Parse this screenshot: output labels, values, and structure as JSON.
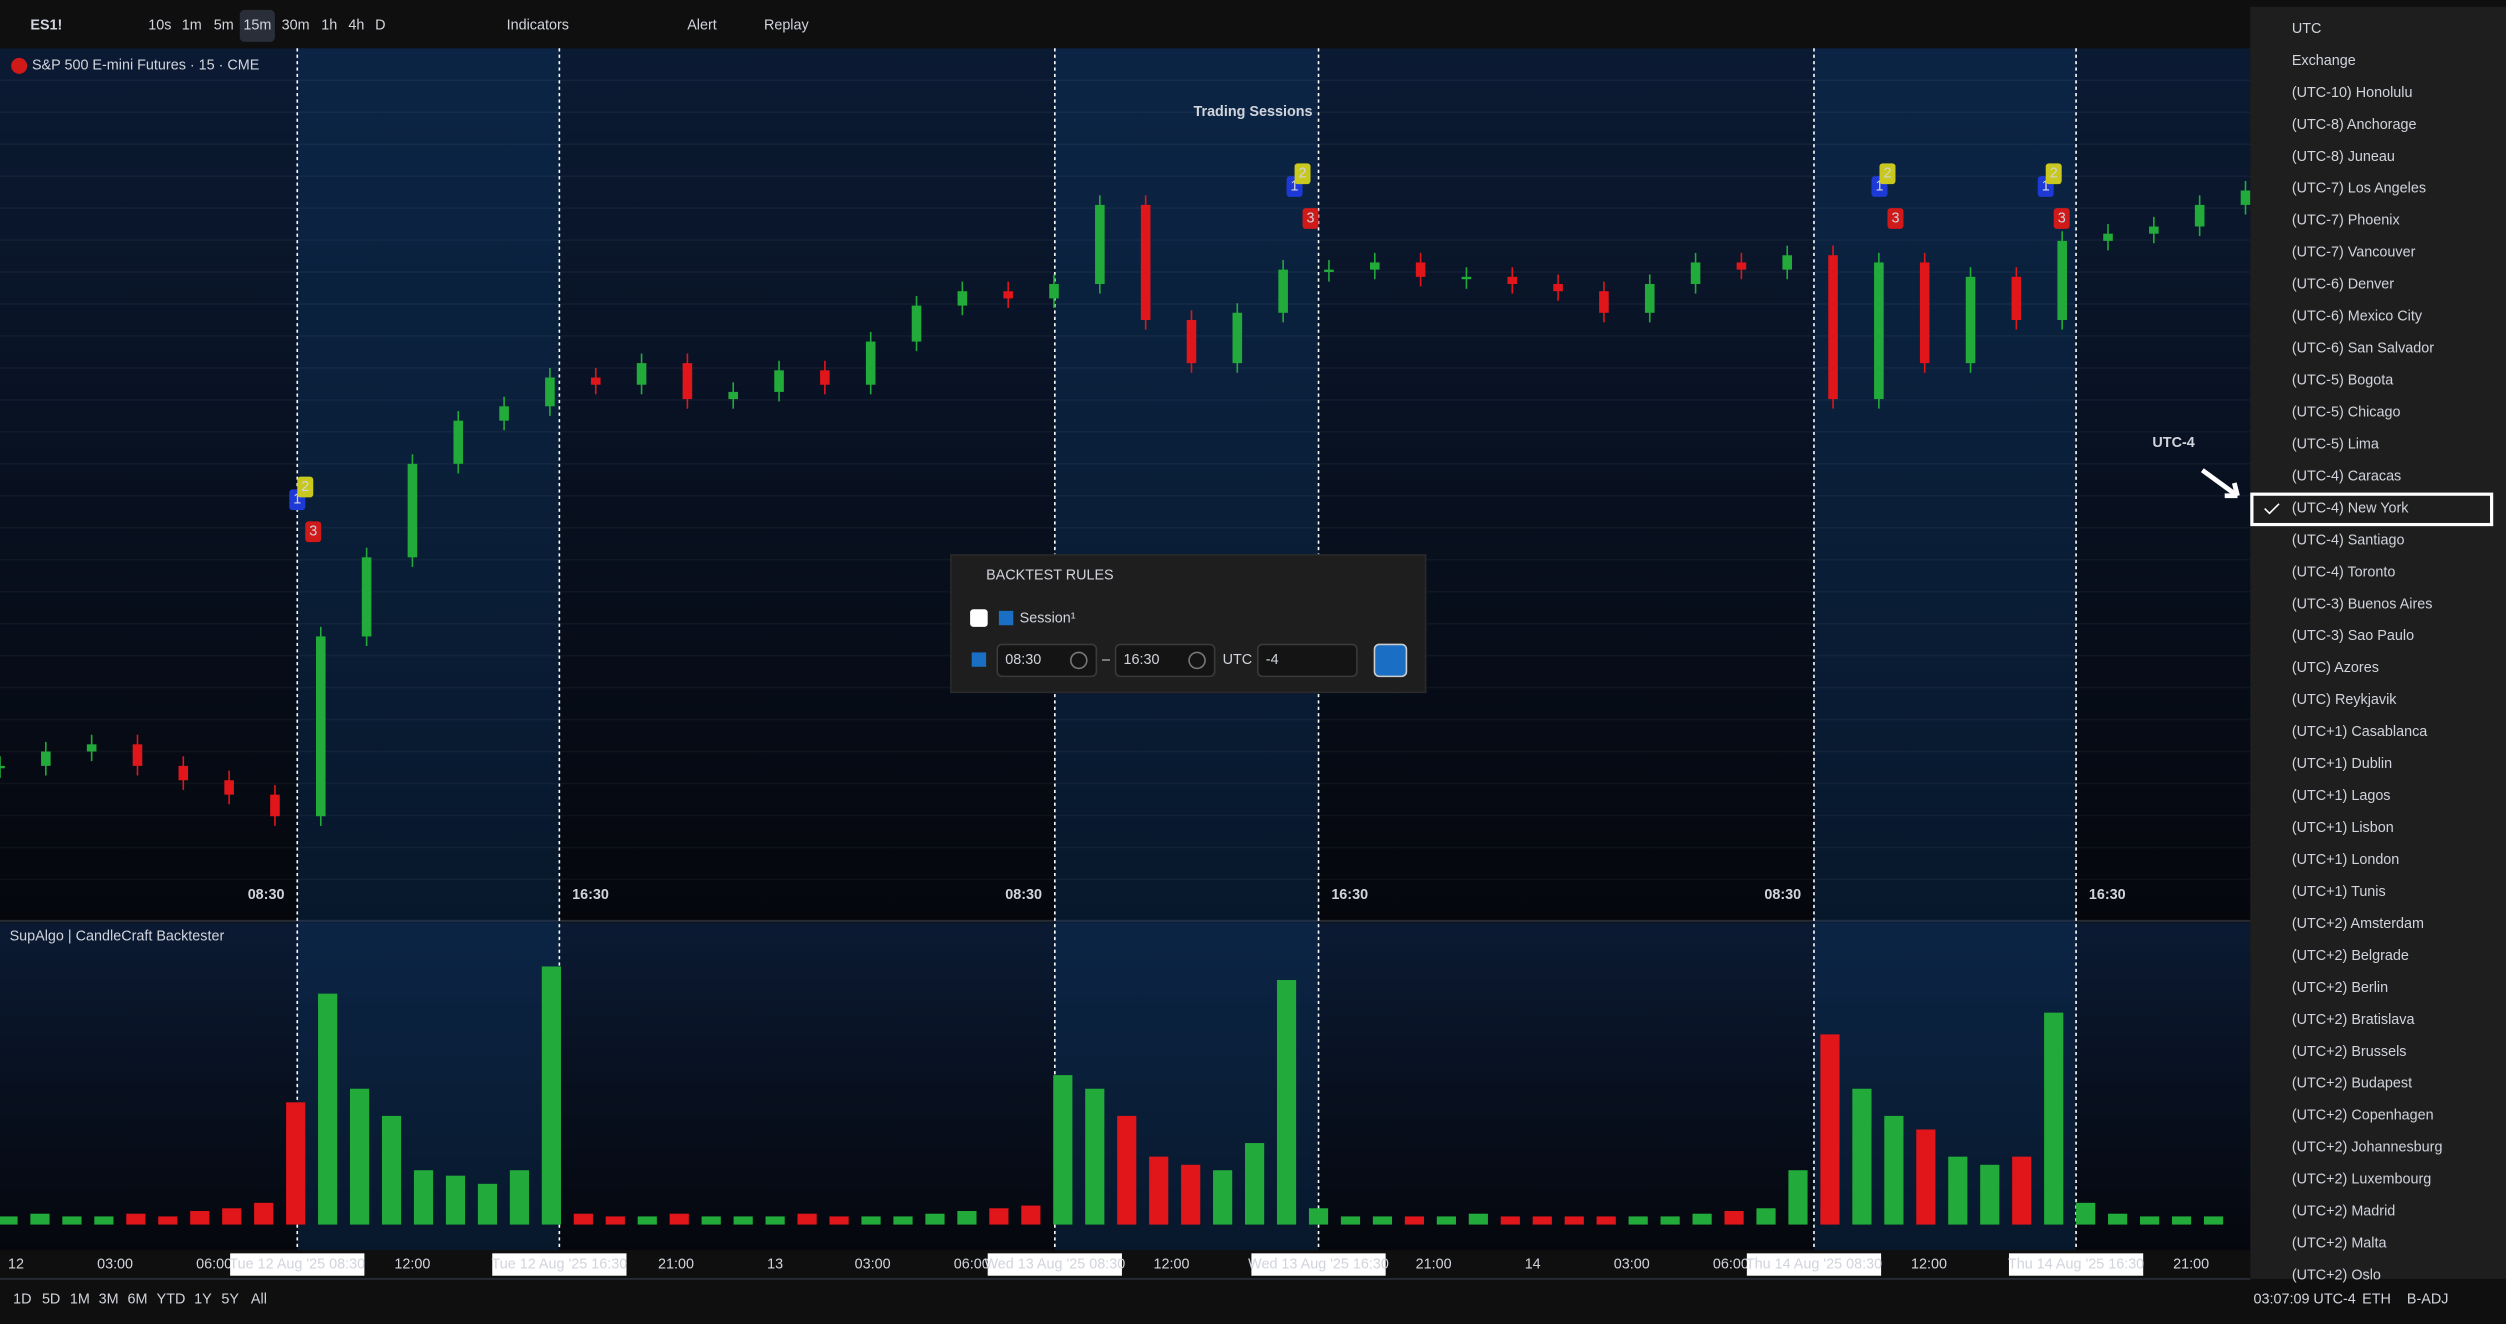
{
  "toolbar": {
    "symbol": "ES1!",
    "intervals": [
      "10s",
      "1m",
      "5m",
      "15m",
      "30m",
      "1h",
      "4h",
      "D"
    ],
    "active_interval": 3,
    "indicators": "Indicators",
    "alert": "Alert",
    "replay": "Replay"
  },
  "chart_data": {
    "type": "candlestick",
    "title": "Trading Sessions",
    "legend": "S&P 500 E-mini Futures · 15 · CME",
    "values": [
      18,
      20,
      21,
      18,
      16,
      14,
      11,
      36,
      47,
      60,
      66,
      68,
      72,
      71,
      74,
      69,
      70,
      73,
      71,
      77,
      82,
      84,
      83,
      85,
      96,
      80,
      74,
      81,
      87,
      87,
      88,
      86,
      86,
      85,
      84,
      81,
      85,
      88,
      87,
      89,
      69,
      88,
      74,
      86,
      80,
      91,
      92,
      93,
      96,
      98
    ],
    "ylim": [
      0,
      100
    ],
    "up_color": "#22ab3a",
    "down_color": "#e0161b",
    "session_labels": [
      "08:30",
      "16:30",
      "08:30",
      "16:30",
      "08:30",
      "16:30"
    ],
    "annotation": "UTC-4",
    "x_labels": [
      "12",
      "03:00",
      "06:00",
      "Tue 12 Aug '25   08:30",
      "12:00",
      "Tue 12 Aug '25   16:30",
      "21:00",
      "13",
      "03:00",
      "06:00",
      "Wed 13 Aug '25   08:30",
      "12:00",
      "Wed 13 Aug '25   16:30",
      "21:00",
      "14",
      "03:00",
      "06:00",
      "Thu 14 Aug '25   08:30",
      "12:00",
      "Thu 14 Aug '25   16:30",
      "21:00"
    ],
    "signals": [
      [
        "1",
        "2",
        "3"
      ],
      [
        "1",
        "2",
        "3"
      ],
      [
        "1",
        "2",
        "3"
      ],
      [
        "1",
        "2",
        "3"
      ]
    ]
  },
  "indicator": {
    "title": "SupAlgo | CandleCraft Backtester",
    "ylim": [
      0,
      100
    ],
    "values": [
      3,
      4,
      3,
      3,
      4,
      3,
      5,
      6,
      8,
      45,
      85,
      50,
      40,
      20,
      18,
      15,
      20,
      95,
      4,
      3,
      3,
      4,
      3,
      3,
      3,
      4,
      3,
      3,
      3,
      4,
      5,
      6,
      7,
      55,
      50,
      40,
      25,
      22,
      20,
      30,
      90,
      6,
      3,
      3,
      3,
      3,
      4,
      3,
      3,
      3,
      3,
      3,
      3,
      4,
      5,
      6,
      20,
      70,
      50,
      40,
      35,
      25,
      22,
      25,
      78,
      8,
      4,
      3,
      3,
      3
    ]
  },
  "backtest_panel": {
    "title": "BACKTEST RULES",
    "session": "Session¹",
    "start": "08:30",
    "separator": "–",
    "end": "16:30",
    "utc": "UTC",
    "offset": "-4"
  },
  "timezones": {
    "items": [
      "UTC",
      "Exchange",
      "(UTC-10) Honolulu",
      "(UTC-8) Anchorage",
      "(UTC-8) Juneau",
      "(UTC-7) Los Angeles",
      "(UTC-7) Phoenix",
      "(UTC-7) Vancouver",
      "(UTC-6) Denver",
      "(UTC-6) Mexico City",
      "(UTC-6) San Salvador",
      "(UTC-5) Bogota",
      "(UTC-5) Chicago",
      "(UTC-5) Lima",
      "(UTC-4) Caracas",
      "(UTC-4) New York",
      "(UTC-4) Santiago",
      "(UTC-4) Toronto",
      "(UTC-3) Buenos Aires",
      "(UTC-3) Sao Paulo",
      "(UTC) Azores",
      "(UTC) Reykjavik",
      "(UTC+1) Casablanca",
      "(UTC+1) Dublin",
      "(UTC+1) Lagos",
      "(UTC+1) Lisbon",
      "(UTC+1) London",
      "(UTC+1) Tunis",
      "(UTC+2) Amsterdam",
      "(UTC+2) Belgrade",
      "(UTC+2) Berlin",
      "(UTC+2) Bratislava",
      "(UTC+2) Brussels",
      "(UTC+2) Budapest",
      "(UTC+2) Copenhagen",
      "(UTC+2) Johannesburg",
      "(UTC+2) Luxembourg",
      "(UTC+2) Madrid",
      "(UTC+2) Malta",
      "(UTC+2) Oslo"
    ],
    "selected": 15
  },
  "bottom_bar": {
    "ranges": [
      "1D",
      "5D",
      "1M",
      "3M",
      "6M",
      "YTD",
      "1Y",
      "5Y",
      "All"
    ],
    "clock": "03:07:09 UTC-4",
    "eth": "ETH",
    "badj": "B-ADJ"
  }
}
